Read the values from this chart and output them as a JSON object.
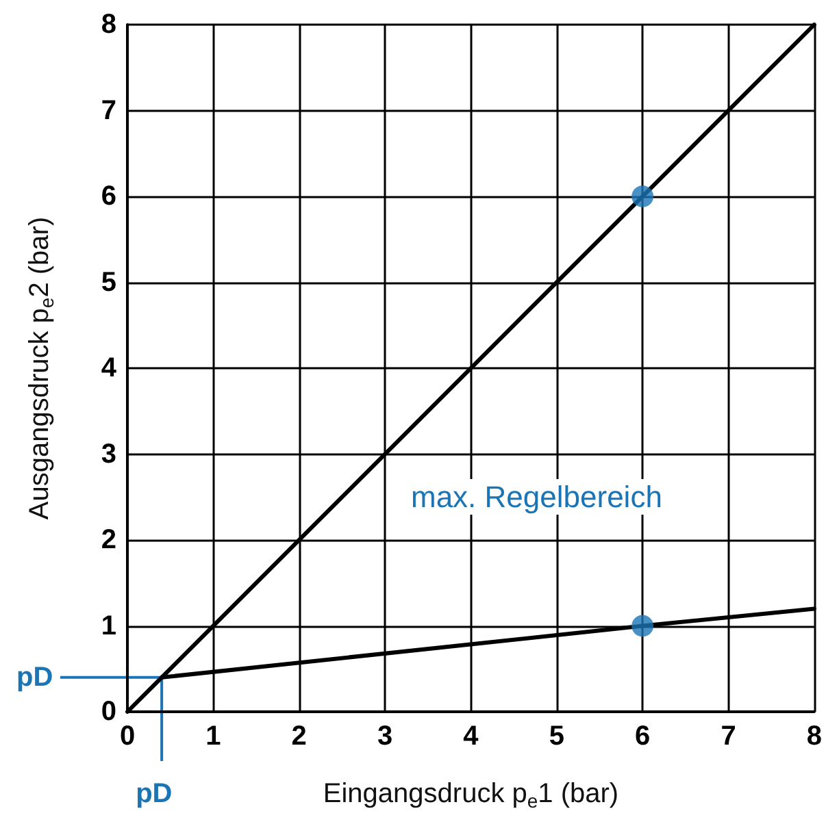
{
  "chart_data": {
    "type": "line",
    "xlabel": "Eingangsdruck p$_{e}$1 (bar)",
    "ylabel": "Ausgangsdruck p$_{e}$2 (bar)",
    "xlim": [
      0,
      8
    ],
    "xticks": [
      0,
      1,
      2,
      3,
      4,
      5,
      6,
      7,
      8
    ],
    "ylim": [
      0,
      8
    ],
    "yticks": [
      0,
      1,
      2,
      3,
      4,
      5,
      6,
      7,
      8
    ],
    "grid": true,
    "marker": "none",
    "line_style": "solid",
    "series": [
      {
        "color": "#000000",
        "x": [
          0,
          8
        ],
        "values": [
          0,
          8
        ]
      },
      {
        "color": "#000000",
        "x": [
          0.4,
          6,
          8
        ],
        "values": [
          0.4,
          1,
          1.2
        ]
      },
      {
        "type": "scatter",
        "color": "#1b75b5",
        "marker": "circle",
        "x": [
          6,
          6
        ],
        "values": [
          6,
          1
        ]
      }
    ],
    "annotations": [
      "pD",
      {
        "text": "pD",
        "x": 0.4,
        "y": 0.4
      },
      "max. Regelbereich"
    ]
  }
}
